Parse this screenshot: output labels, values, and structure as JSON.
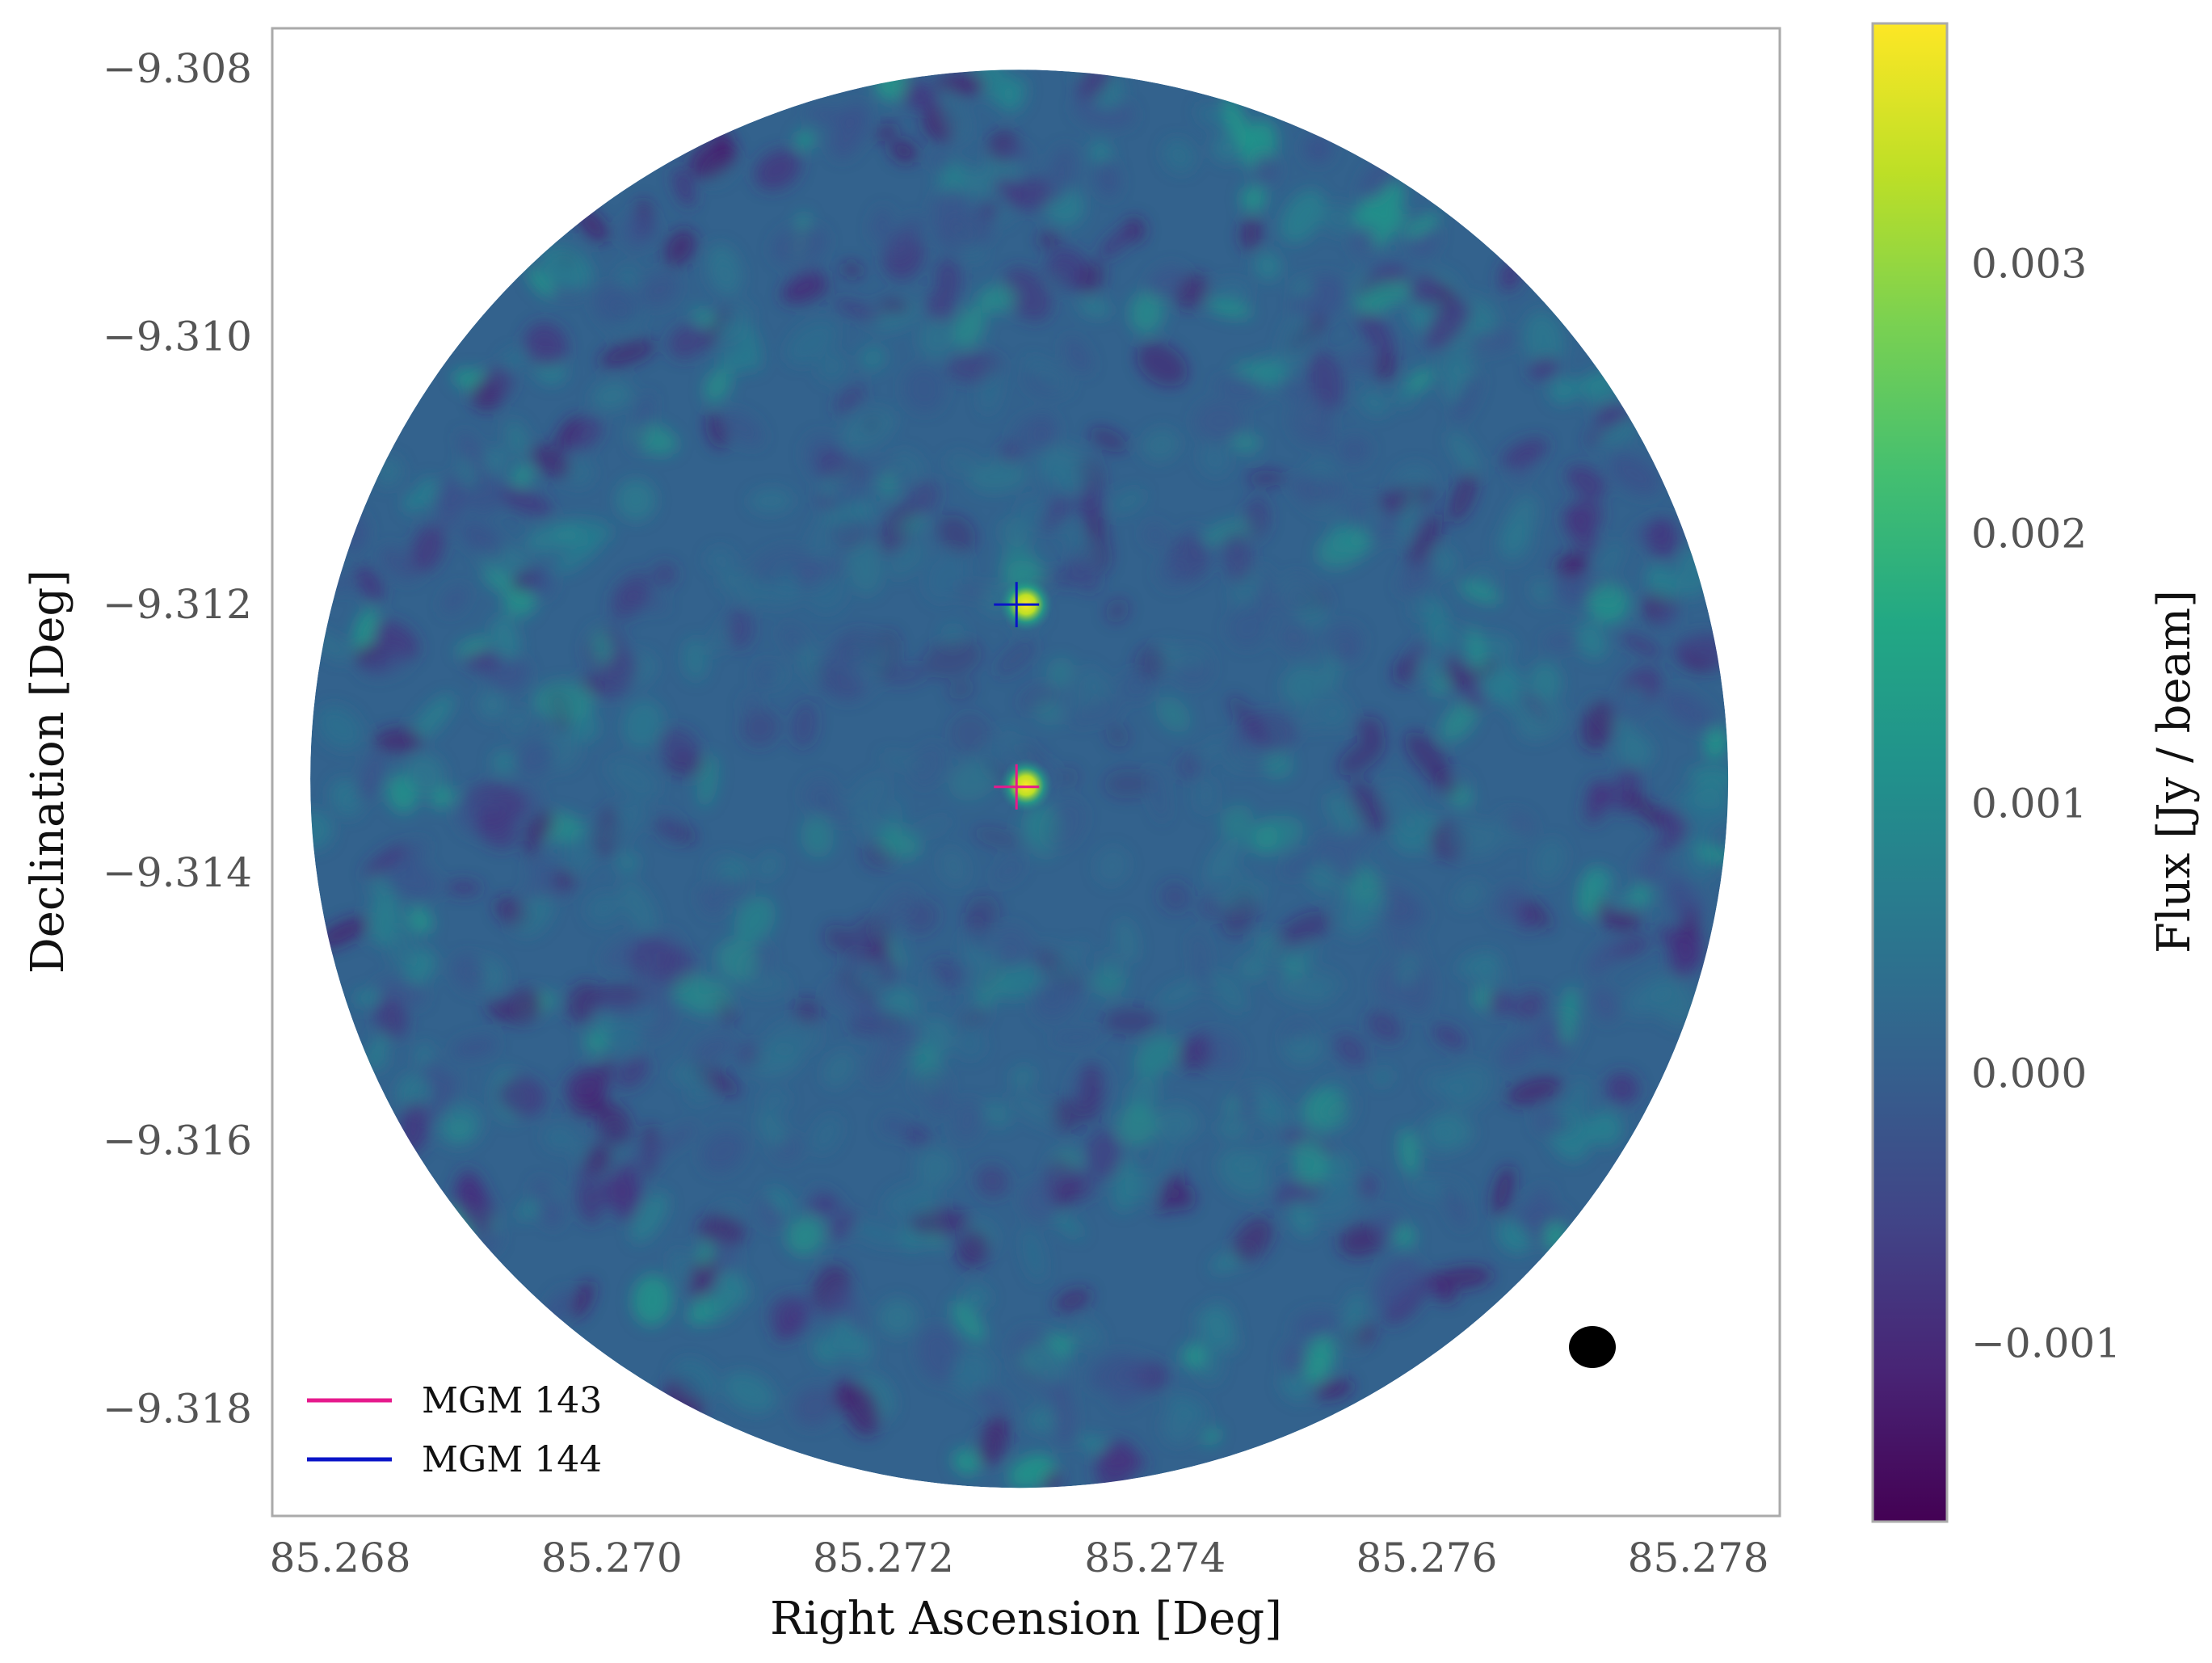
{
  "chart_data": {
    "type": "heatmap",
    "title": "",
    "xlabel": "Right Ascension [Deg]",
    "ylabel": "Declination [Deg]",
    "xlim": [
      85.2675,
      85.2786
    ],
    "ylim": [
      -9.3188,
      -9.3077
    ],
    "x_ticks": [
      {
        "value": 85.268,
        "label": "85.268"
      },
      {
        "value": 85.27,
        "label": "85.270"
      },
      {
        "value": 85.272,
        "label": "85.272"
      },
      {
        "value": 85.274,
        "label": "85.274"
      },
      {
        "value": 85.276,
        "label": "85.276"
      },
      {
        "value": 85.278,
        "label": "85.278"
      }
    ],
    "y_ticks": [
      {
        "value": -9.308,
        "label": "−9.308"
      },
      {
        "value": -9.31,
        "label": "−9.310"
      },
      {
        "value": -9.312,
        "label": "−9.312"
      },
      {
        "value": -9.314,
        "label": "−9.314"
      },
      {
        "value": -9.316,
        "label": "−9.316"
      },
      {
        "value": -9.318,
        "label": "−9.318"
      }
    ],
    "grid": false,
    "field": {
      "center_ra": 85.273,
      "center_dec": -9.3133,
      "radius_ra": 0.00522
    },
    "peaks": [
      {
        "ra": 85.27305,
        "dec": -9.312,
        "flux": 0.0037
      },
      {
        "ra": 85.27305,
        "dec": -9.31335,
        "flux": 0.0031
      }
    ],
    "markers": [
      {
        "name": "MGM 143",
        "ra": 85.27298,
        "dec": -9.31336,
        "color": "#e6198c"
      },
      {
        "name": "MGM 144",
        "ra": 85.27298,
        "dec": -9.312,
        "color": "#0a14c8"
      }
    ],
    "beam": {
      "ra": 85.27722,
      "dec": -9.31754
    },
    "legend": {
      "placement": "lower-left",
      "entries": [
        {
          "label": "MGM 143",
          "color": "#e6198c"
        },
        {
          "label": "MGM 144",
          "color": "#0a14c8"
        }
      ]
    },
    "colorbar": {
      "label": "Flux [Jy / beam]",
      "colormap": "viridis",
      "vmin": -0.00166,
      "vmax": 0.00389,
      "ticks": [
        {
          "value": -0.001,
          "label": "−0.001"
        },
        {
          "value": 0.0,
          "label": "0.000"
        },
        {
          "value": 0.001,
          "label": "0.001"
        },
        {
          "value": 0.002,
          "label": "0.002"
        },
        {
          "value": 0.003,
          "label": "0.003"
        }
      ]
    }
  }
}
